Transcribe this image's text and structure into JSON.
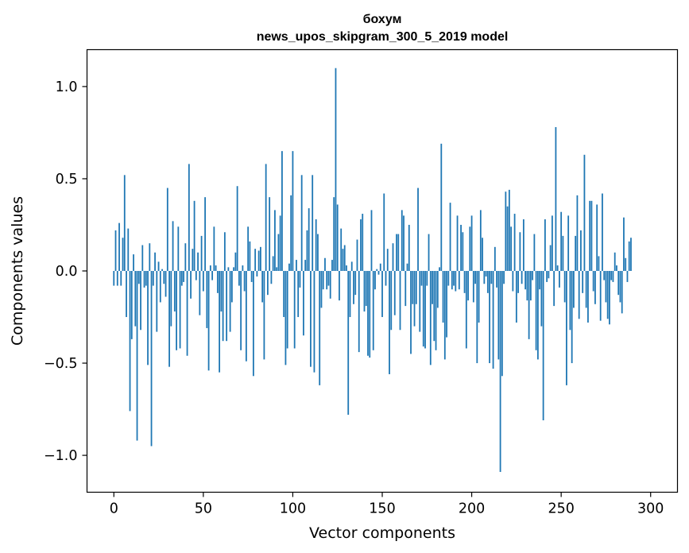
{
  "chart_data": {
    "type": "bar",
    "title": "бохум",
    "subtitle": "news_upos_skipgram_300_5_2019 model",
    "xlabel": "Vector components",
    "ylabel": "Components values",
    "xlim": [
      -15,
      315
    ],
    "ylim": [
      -1.2,
      1.2
    ],
    "xticks": [
      0,
      50,
      100,
      150,
      200,
      250,
      300
    ],
    "yticks": [
      -1.0,
      -0.5,
      0.0,
      0.5,
      1.0
    ],
    "xtick_labels": [
      "0",
      "50",
      "100",
      "150",
      "200",
      "250",
      "300"
    ],
    "ytick_labels": [
      "−1.0",
      "−0.5",
      "0.0",
      "0.5",
      "1.0"
    ],
    "grid": false,
    "bar_color": "#1f77b4",
    "values": [
      -0.08,
      0.22,
      -0.08,
      0.26,
      -0.08,
      0.18,
      0.52,
      -0.25,
      0.23,
      -0.76,
      -0.37,
      0.09,
      -0.3,
      -0.92,
      -0.07,
      -0.32,
      0.14,
      -0.09,
      -0.08,
      -0.51,
      0.15,
      -0.95,
      -0.08,
      0.1,
      -0.33,
      0.05,
      -0.17,
      0.01,
      -0.07,
      -0.14,
      0.45,
      -0.52,
      -0.3,
      0.27,
      -0.22,
      -0.43,
      0.24,
      -0.42,
      -0.08,
      -0.06,
      0.15,
      -0.46,
      0.58,
      -0.15,
      0.12,
      0.38,
      -0.05,
      0.1,
      -0.24,
      0.19,
      -0.11,
      0.4,
      -0.31,
      -0.54,
      0.03,
      -0.05,
      0.24,
      0.03,
      -0.12,
      -0.55,
      -0.22,
      -0.38,
      0.21,
      -0.38,
      0.02,
      -0.33,
      -0.17,
      0.02,
      0.1,
      0.46,
      -0.08,
      -0.43,
      0.03,
      -0.11,
      -0.49,
      0.24,
      0.16,
      -0.06,
      -0.57,
      0.12,
      -0.03,
      0.11,
      0.13,
      -0.17,
      -0.48,
      0.58,
      -0.13,
      0.4,
      -0.07,
      0.08,
      0.33,
      0.02,
      0.2,
      0.3,
      0.65,
      -0.25,
      -0.51,
      -0.42,
      0.04,
      0.41,
      0.65,
      -0.42,
      0.06,
      -0.25,
      -0.09,
      0.52,
      -0.35,
      0.06,
      0.22,
      0.34,
      -0.52,
      0.52,
      -0.55,
      0.28,
      0.2,
      -0.62,
      -0.2,
      -0.1,
      0.07,
      -0.1,
      -0.08,
      -0.15,
      0.06,
      0.4,
      1.1,
      0.36,
      -0.16,
      0.23,
      0.12,
      0.14,
      0.03,
      -0.78,
      -0.25,
      0.05,
      -0.18,
      -0.13,
      0.17,
      -0.44,
      0.28,
      0.31,
      -0.22,
      -0.19,
      -0.46,
      -0.47,
      0.33,
      -0.43,
      -0.1,
      0.01,
      -0.02,
      0.04,
      -0.25,
      0.42,
      -0.08,
      0.12,
      -0.56,
      -0.32,
      0.15,
      -0.24,
      0.2,
      0.2,
      -0.32,
      0.33,
      0.3,
      -0.19,
      0.04,
      0.25,
      -0.45,
      -0.18,
      -0.3,
      -0.18,
      0.45,
      -0.33,
      -0.08,
      -0.41,
      -0.42,
      -0.08,
      0.2,
      -0.51,
      -0.18,
      -0.38,
      -0.43,
      -0.2,
      0.02,
      0.69,
      -0.28,
      -0.48,
      -0.36,
      -0.08,
      0.37,
      -0.1,
      -0.08,
      -0.11,
      0.3,
      -0.1,
      0.25,
      0.21,
      -0.12,
      -0.42,
      -0.16,
      0.24,
      0.3,
      -0.17,
      -0.07,
      -0.5,
      -0.28,
      0.33,
      0.18,
      -0.07,
      -0.03,
      -0.12,
      -0.5,
      -0.07,
      -0.53,
      0.13,
      -0.09,
      -0.48,
      -1.09,
      -0.57,
      -0.07,
      0.43,
      0.35,
      0.44,
      0.24,
      -0.11,
      0.31,
      -0.28,
      -0.12,
      0.21,
      -0.07,
      0.28,
      -0.1,
      -0.16,
      -0.37,
      -0.16,
      -0.05,
      0.2,
      -0.43,
      -0.48,
      -0.1,
      -0.3,
      -0.81,
      0.28,
      -0.06,
      -0.04,
      0.14,
      0.3,
      -0.19,
      0.78,
      0.03,
      -0.09,
      0.32,
      0.19,
      -0.17,
      -0.62,
      0.3,
      -0.32,
      -0.5,
      -0.2,
      0.19,
      0.41,
      -0.26,
      0.22,
      -0.12,
      0.63,
      -0.2,
      -0.28,
      0.38,
      0.38,
      -0.11,
      -0.18,
      0.36,
      0.08,
      -0.27,
      0.42,
      -0.05,
      -0.17,
      -0.26,
      -0.29,
      -0.05,
      -0.06,
      0.1,
      0.03,
      -0.13,
      -0.17,
      -0.23,
      0.29,
      0.07,
      -0.06,
      0.16,
      0.18
    ]
  }
}
